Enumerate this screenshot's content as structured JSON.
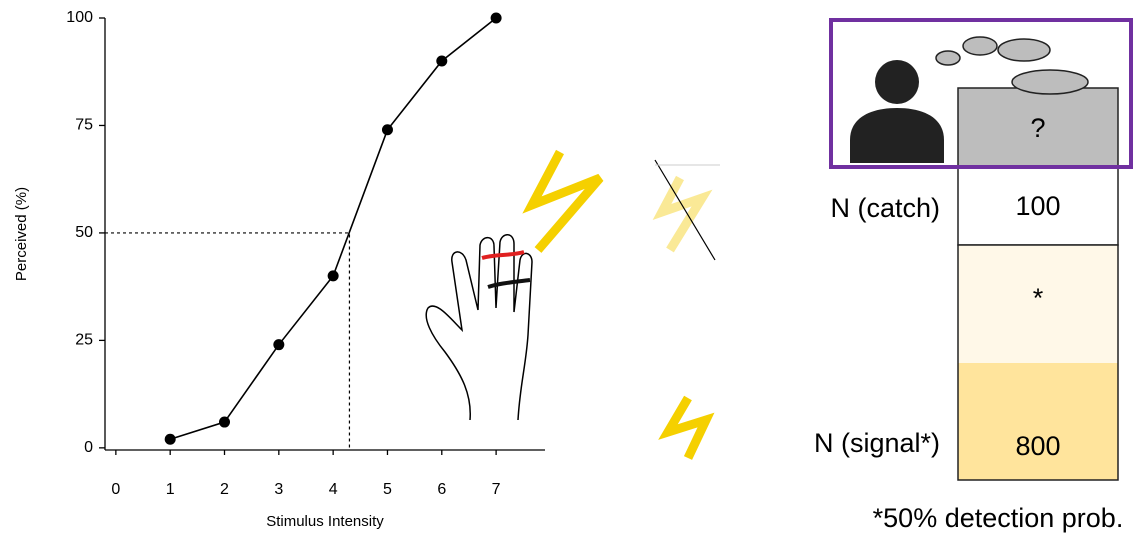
{
  "chart_data": {
    "type": "line",
    "x": [
      1,
      2,
      3,
      4,
      5,
      6,
      7
    ],
    "series": [
      {
        "values": [
          2,
          6,
          24,
          40,
          74,
          90,
          100
        ],
        "color": "#000000"
      }
    ],
    "xlim": [
      -0.2,
      7.9
    ],
    "ylim": [
      -0.5,
      100
    ],
    "xticks": [
      0,
      1,
      2,
      3,
      4,
      5,
      6,
      7
    ],
    "yticks": [
      0,
      25,
      50,
      75,
      100
    ],
    "xlabel": "Stimulus Intensity",
    "ylabel": "Perceived (%)",
    "threshold": {
      "x": 4.3,
      "y": 50
    }
  },
  "diagram": {
    "question": "?",
    "catch_label": "N (catch)",
    "catch_count": "100",
    "mid_label": "*",
    "signal_label": "N (signal*)",
    "signal_count": "800",
    "footnote": "*50% detection prob."
  }
}
